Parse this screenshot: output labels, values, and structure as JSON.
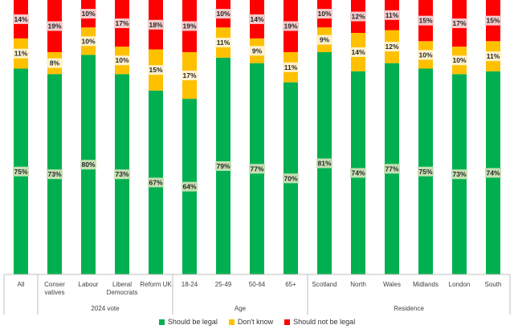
{
  "chart_data": {
    "type": "bar",
    "stacked": true,
    "categories": [
      "All",
      "Conser\nvatives",
      "Labour",
      "Liberal\nDemocrats",
      "Reform UK",
      "18-24",
      "25-49",
      "50-64",
      "65+",
      "Scotland",
      "North",
      "Wales",
      "Midlands",
      "London",
      "South"
    ],
    "groups": [
      {
        "label": "",
        "categories": [
          "All"
        ]
      },
      {
        "label": "2024 vote",
        "categories": [
          "Conser\nvatives",
          "Labour",
          "Liberal\nDemocrats",
          "Reform UK"
        ]
      },
      {
        "label": "Age",
        "categories": [
          "18-24",
          "25-49",
          "50-64",
          "65+"
        ]
      },
      {
        "label": "Residence",
        "categories": [
          "Scotland",
          "North",
          "Wales",
          "Midlands",
          "London",
          "South"
        ]
      }
    ],
    "series": [
      {
        "name": "Should be legal",
        "color": "#00b050",
        "label_bg": "#c6e0b4",
        "values": [
          75,
          73,
          80,
          73,
          67,
          64,
          79,
          77,
          70,
          81,
          74,
          77,
          75,
          73,
          74
        ]
      },
      {
        "name": "Don't know",
        "color": "#ffc000",
        "label_bg": "#fff2cc",
        "values": [
          11,
          8,
          10,
          10,
          15,
          17,
          11,
          9,
          11,
          9,
          14,
          12,
          10,
          10,
          11
        ]
      },
      {
        "name": "Should not be legal",
        "color": "#ff0000",
        "label_bg": "#f4cccc",
        "values": [
          14,
          19,
          10,
          17,
          18,
          19,
          10,
          14,
          19,
          10,
          12,
          11,
          15,
          17,
          15
        ]
      }
    ],
    "value_suffix": "%",
    "ylim": [
      0,
      100
    ],
    "legend_position": "bottom",
    "grid": false
  }
}
